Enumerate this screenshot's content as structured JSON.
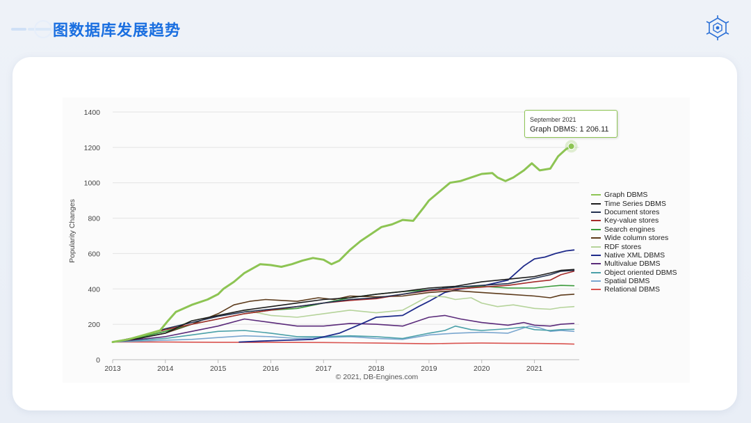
{
  "page": {
    "title": "图数据库发展趋势"
  },
  "chart_data": {
    "type": "line",
    "ylabel": "Popularity Changes",
    "xlabel": "",
    "credit": "© 2021, DB-Engines.com",
    "ylim": [
      0,
      1400
    ],
    "xlim": [
      2013,
      2021.85
    ],
    "y_ticks": [
      "0",
      "200",
      "400",
      "600",
      "800",
      "1000",
      "1200",
      "1400"
    ],
    "x_ticks": [
      "2013",
      "2014",
      "2015",
      "2016",
      "2017",
      "2018",
      "2019",
      "2020",
      "2021"
    ],
    "grid": true,
    "legend_position": "right",
    "tooltip": {
      "date": "September 2021",
      "text": "Graph DBMS: 1 206.11",
      "x": 2021.7,
      "y": 1206.11
    },
    "series": [
      {
        "name": "Graph DBMS",
        "color": "#8dc453",
        "width": 3,
        "points": [
          [
            2013,
            100
          ],
          [
            2013.3,
            115
          ],
          [
            2013.6,
            140
          ],
          [
            2013.9,
            165
          ],
          [
            2014.05,
            220
          ],
          [
            2014.2,
            270
          ],
          [
            2014.5,
            310
          ],
          [
            2014.8,
            340
          ],
          [
            2015.0,
            370
          ],
          [
            2015.1,
            400
          ],
          [
            2015.3,
            440
          ],
          [
            2015.5,
            490
          ],
          [
            2015.8,
            540
          ],
          [
            2016.0,
            535
          ],
          [
            2016.2,
            525
          ],
          [
            2016.4,
            540
          ],
          [
            2016.6,
            560
          ],
          [
            2016.8,
            575
          ],
          [
            2017.0,
            565
          ],
          [
            2017.15,
            540
          ],
          [
            2017.3,
            560
          ],
          [
            2017.5,
            620
          ],
          [
            2017.7,
            670
          ],
          [
            2017.9,
            710
          ],
          [
            2018.1,
            750
          ],
          [
            2018.3,
            765
          ],
          [
            2018.5,
            790
          ],
          [
            2018.7,
            785
          ],
          [
            2018.9,
            860
          ],
          [
            2019.0,
            900
          ],
          [
            2019.2,
            950
          ],
          [
            2019.4,
            1000
          ],
          [
            2019.6,
            1010
          ],
          [
            2019.8,
            1030
          ],
          [
            2020.0,
            1050
          ],
          [
            2020.2,
            1055
          ],
          [
            2020.3,
            1030
          ],
          [
            2020.45,
            1010
          ],
          [
            2020.6,
            1030
          ],
          [
            2020.8,
            1070
          ],
          [
            2020.95,
            1110
          ],
          [
            2021.1,
            1070
          ],
          [
            2021.3,
            1080
          ],
          [
            2021.45,
            1150
          ],
          [
            2021.6,
            1190
          ],
          [
            2021.7,
            1206
          ]
        ]
      },
      {
        "name": "Time Series DBMS",
        "color": "#1c1c1c",
        "width": 1.6,
        "points": [
          [
            2013,
            100
          ],
          [
            2013.5,
            120
          ],
          [
            2014,
            150
          ],
          [
            2014.5,
            220
          ],
          [
            2015,
            250
          ],
          [
            2015.5,
            280
          ],
          [
            2016,
            300
          ],
          [
            2016.5,
            320
          ],
          [
            2017,
            340
          ],
          [
            2017.5,
            350
          ],
          [
            2018,
            370
          ],
          [
            2018.5,
            385
          ],
          [
            2019,
            405
          ],
          [
            2019.5,
            415
          ],
          [
            2020,
            440
          ],
          [
            2020.5,
            455
          ],
          [
            2021,
            470
          ],
          [
            2021.3,
            490
          ],
          [
            2021.5,
            505
          ],
          [
            2021.75,
            510
          ]
        ]
      },
      {
        "name": "Document stores",
        "color": "#233150",
        "width": 1.6,
        "points": [
          [
            2013,
            100
          ],
          [
            2013.5,
            130
          ],
          [
            2014,
            175
          ],
          [
            2014.5,
            210
          ],
          [
            2015,
            245
          ],
          [
            2015.5,
            270
          ],
          [
            2016,
            285
          ],
          [
            2016.5,
            300
          ],
          [
            2017,
            320
          ],
          [
            2017.5,
            340
          ],
          [
            2018,
            350
          ],
          [
            2018.5,
            370
          ],
          [
            2019,
            395
          ],
          [
            2019.5,
            410
          ],
          [
            2020,
            420
          ],
          [
            2020.5,
            430
          ],
          [
            2021,
            460
          ],
          [
            2021.3,
            480
          ],
          [
            2021.5,
            500
          ],
          [
            2021.75,
            505
          ]
        ]
      },
      {
        "name": "Key-value stores",
        "color": "#a52a2a",
        "width": 1.6,
        "points": [
          [
            2013,
            100
          ],
          [
            2013.5,
            130
          ],
          [
            2014,
            170
          ],
          [
            2014.5,
            200
          ],
          [
            2015,
            230
          ],
          [
            2015.5,
            260
          ],
          [
            2016,
            280
          ],
          [
            2016.5,
            300
          ],
          [
            2017,
            320
          ],
          [
            2017.5,
            335
          ],
          [
            2018,
            345
          ],
          [
            2018.5,
            370
          ],
          [
            2019,
            390
          ],
          [
            2019.5,
            400
          ],
          [
            2020,
            410
          ],
          [
            2020.5,
            420
          ],
          [
            2021,
            440
          ],
          [
            2021.3,
            450
          ],
          [
            2021.5,
            480
          ],
          [
            2021.75,
            500
          ]
        ]
      },
      {
        "name": "Search engines",
        "color": "#3a9a3a",
        "width": 1.6,
        "points": [
          [
            2013,
            100
          ],
          [
            2013.5,
            125
          ],
          [
            2014,
            160
          ],
          [
            2014.5,
            200
          ],
          [
            2015,
            230
          ],
          [
            2015.5,
            260
          ],
          [
            2016,
            280
          ],
          [
            2016.5,
            290
          ],
          [
            2017,
            320
          ],
          [
            2017.5,
            350
          ],
          [
            2018,
            370
          ],
          [
            2018.5,
            385
          ],
          [
            2019,
            395
          ],
          [
            2019.5,
            410
          ],
          [
            2020,
            415
          ],
          [
            2020.5,
            405
          ],
          [
            2021,
            405
          ],
          [
            2021.3,
            415
          ],
          [
            2021.5,
            420
          ],
          [
            2021.75,
            418
          ]
        ]
      },
      {
        "name": "Wide column stores",
        "color": "#5c3a1a",
        "width": 1.6,
        "points": [
          [
            2013,
            100
          ],
          [
            2013.5,
            120
          ],
          [
            2014,
            150
          ],
          [
            2014.5,
            200
          ],
          [
            2015,
            260
          ],
          [
            2015.3,
            310
          ],
          [
            2015.6,
            330
          ],
          [
            2015.9,
            340
          ],
          [
            2016.2,
            335
          ],
          [
            2016.5,
            330
          ],
          [
            2016.9,
            350
          ],
          [
            2017.2,
            340
          ],
          [
            2017.5,
            360
          ],
          [
            2018,
            355
          ],
          [
            2018.5,
            360
          ],
          [
            2019,
            380
          ],
          [
            2019.5,
            390
          ],
          [
            2020,
            380
          ],
          [
            2020.5,
            370
          ],
          [
            2021,
            360
          ],
          [
            2021.3,
            350
          ],
          [
            2021.5,
            365
          ],
          [
            2021.75,
            370
          ]
        ]
      },
      {
        "name": "RDF stores",
        "color": "#b5d39a",
        "width": 1.6,
        "points": [
          [
            2013,
            100
          ],
          [
            2013.5,
            125
          ],
          [
            2014,
            160
          ],
          [
            2014.5,
            220
          ],
          [
            2015,
            250
          ],
          [
            2015.5,
            280
          ],
          [
            2016,
            250
          ],
          [
            2016.5,
            240
          ],
          [
            2017,
            260
          ],
          [
            2017.5,
            280
          ],
          [
            2018,
            265
          ],
          [
            2018.5,
            280
          ],
          [
            2019,
            360
          ],
          [
            2019.3,
            355
          ],
          [
            2019.5,
            340
          ],
          [
            2019.8,
            350
          ],
          [
            2020,
            320
          ],
          [
            2020.3,
            300
          ],
          [
            2020.6,
            310
          ],
          [
            2021,
            290
          ],
          [
            2021.3,
            285
          ],
          [
            2021.5,
            295
          ],
          [
            2021.75,
            300
          ]
        ]
      },
      {
        "name": "Native XML DBMS",
        "color": "#1e2a8a",
        "width": 1.8,
        "points": [
          [
            2015.4,
            100
          ],
          [
            2015.8,
            105
          ],
          [
            2016.3,
            110
          ],
          [
            2016.8,
            115
          ],
          [
            2017.3,
            150
          ],
          [
            2017.7,
            200
          ],
          [
            2018,
            240
          ],
          [
            2018.5,
            250
          ],
          [
            2018.8,
            300
          ],
          [
            2019,
            330
          ],
          [
            2019.3,
            380
          ],
          [
            2019.6,
            400
          ],
          [
            2019.9,
            410
          ],
          [
            2020.2,
            430
          ],
          [
            2020.5,
            450
          ],
          [
            2020.8,
            530
          ],
          [
            2021,
            570
          ],
          [
            2021.2,
            580
          ],
          [
            2021.4,
            600
          ],
          [
            2021.6,
            615
          ],
          [
            2021.75,
            620
          ]
        ]
      },
      {
        "name": "Multivalue DBMS",
        "color": "#5a2a7a",
        "width": 1.6,
        "points": [
          [
            2013,
            100
          ],
          [
            2013.5,
            115
          ],
          [
            2014,
            130
          ],
          [
            2014.5,
            160
          ],
          [
            2015,
            190
          ],
          [
            2015.5,
            230
          ],
          [
            2016,
            210
          ],
          [
            2016.5,
            190
          ],
          [
            2017,
            190
          ],
          [
            2017.5,
            205
          ],
          [
            2018,
            200
          ],
          [
            2018.5,
            190
          ],
          [
            2019,
            240
          ],
          [
            2019.3,
            250
          ],
          [
            2019.6,
            230
          ],
          [
            2020,
            210
          ],
          [
            2020.5,
            195
          ],
          [
            2020.8,
            210
          ],
          [
            2021,
            195
          ],
          [
            2021.3,
            190
          ],
          [
            2021.5,
            200
          ],
          [
            2021.75,
            205
          ]
        ]
      },
      {
        "name": "Object oriented DBMS",
        "color": "#4aa0a8",
        "width": 1.6,
        "points": [
          [
            2013,
            100
          ],
          [
            2013.5,
            110
          ],
          [
            2014,
            120
          ],
          [
            2014.5,
            140
          ],
          [
            2015,
            160
          ],
          [
            2015.5,
            165
          ],
          [
            2016,
            150
          ],
          [
            2016.5,
            130
          ],
          [
            2017,
            130
          ],
          [
            2017.5,
            135
          ],
          [
            2018,
            130
          ],
          [
            2018.5,
            120
          ],
          [
            2019,
            150
          ],
          [
            2019.3,
            165
          ],
          [
            2019.5,
            190
          ],
          [
            2019.8,
            170
          ],
          [
            2020,
            165
          ],
          [
            2020.5,
            175
          ],
          [
            2020.8,
            185
          ],
          [
            2021,
            170
          ],
          [
            2021.3,
            165
          ],
          [
            2021.5,
            170
          ],
          [
            2021.75,
            172
          ]
        ]
      },
      {
        "name": "Spatial DBMS",
        "color": "#7aa6cf",
        "width": 1.6,
        "points": [
          [
            2013,
            100
          ],
          [
            2013.5,
            105
          ],
          [
            2014,
            110
          ],
          [
            2014.5,
            115
          ],
          [
            2015,
            125
          ],
          [
            2015.5,
            135
          ],
          [
            2016,
            130
          ],
          [
            2016.5,
            120
          ],
          [
            2017,
            125
          ],
          [
            2017.5,
            130
          ],
          [
            2018,
            120
          ],
          [
            2018.5,
            115
          ],
          [
            2019,
            140
          ],
          [
            2019.5,
            150
          ],
          [
            2020,
            155
          ],
          [
            2020.5,
            150
          ],
          [
            2020.9,
            190
          ],
          [
            2021.1,
            180
          ],
          [
            2021.3,
            160
          ],
          [
            2021.5,
            165
          ],
          [
            2021.75,
            160
          ]
        ]
      },
      {
        "name": "Relational DBMS",
        "color": "#d9534f",
        "width": 1.6,
        "points": [
          [
            2013,
            100
          ],
          [
            2014,
            100
          ],
          [
            2015,
            98
          ],
          [
            2016,
            98
          ],
          [
            2017,
            97
          ],
          [
            2018,
            94
          ],
          [
            2019,
            90
          ],
          [
            2019.5,
            93
          ],
          [
            2020,
            94
          ],
          [
            2020.5,
            93
          ],
          [
            2021,
            92
          ],
          [
            2021.5,
            90
          ],
          [
            2021.75,
            88
          ]
        ]
      }
    ]
  }
}
